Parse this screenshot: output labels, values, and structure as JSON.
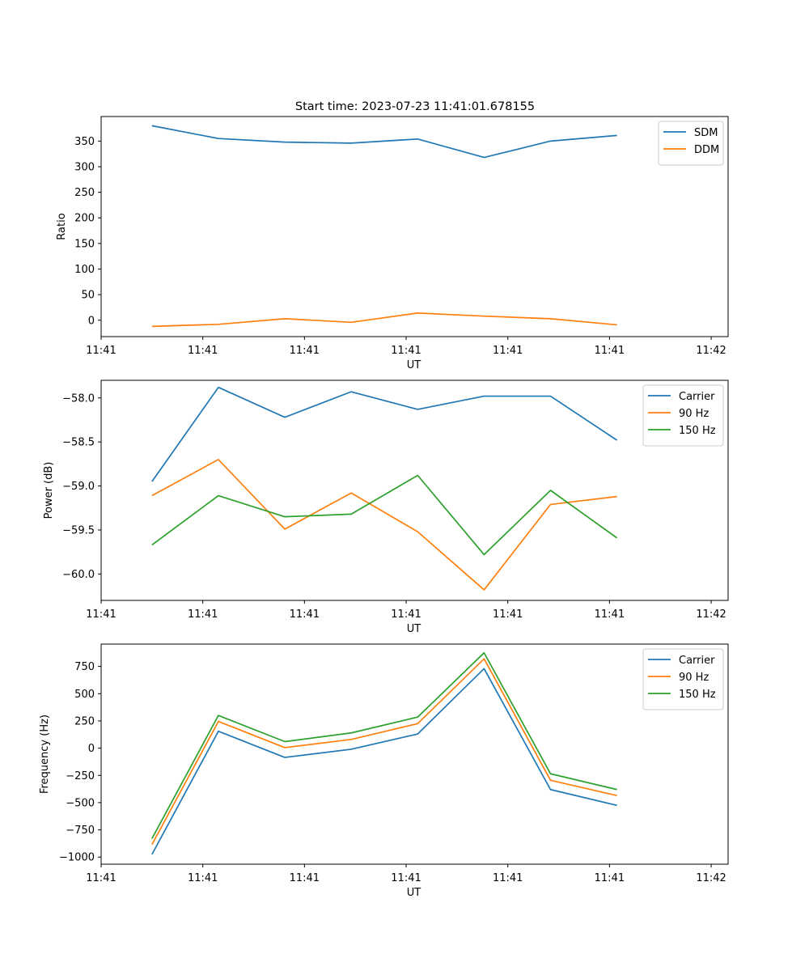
{
  "figure": {
    "title": "Start time: 2023-07-23 11:41:01.678155"
  },
  "chart_data": [
    {
      "type": "line",
      "ylabel": "Ratio",
      "xlabel": "UT",
      "xlim": [
        0,
        9.25
      ],
      "ylim": [
        -32,
        398
      ],
      "yticks": [
        0,
        50,
        100,
        150,
        200,
        250,
        300,
        350
      ],
      "ytick_labels": [
        "0",
        "50",
        "100",
        "150",
        "200",
        "250",
        "300",
        "350"
      ],
      "xticks": [
        0,
        1.5,
        3,
        4.5,
        6,
        7.5,
        9
      ],
      "xtick_labels": [
        "11:41",
        "11:41",
        "11:41",
        "11:41",
        "11:41",
        "11:41",
        "11:42"
      ],
      "x": [
        0.75,
        1.73,
        2.71,
        3.69,
        4.67,
        5.65,
        6.63,
        7.61
      ],
      "series": [
        {
          "name": "SDM",
          "color": "#1f77b4",
          "values": [
            380,
            355,
            348,
            346,
            354,
            318,
            350,
            361
          ]
        },
        {
          "name": "DDM",
          "color": "#ff7f0e",
          "values": [
            -12,
            -8,
            3,
            -4,
            14,
            8,
            3,
            -9
          ]
        }
      ],
      "legend": "top-right"
    },
    {
      "type": "line",
      "ylabel": "Power (dB)",
      "xlabel": "UT",
      "xlim": [
        0,
        9.25
      ],
      "ylim": [
        -60.3,
        -57.8
      ],
      "yticks": [
        -60.0,
        -59.5,
        -59.0,
        -58.5,
        -58.0
      ],
      "ytick_labels": [
        "−60.0",
        "−59.5",
        "−59.0",
        "−58.5",
        "−58.0"
      ],
      "xticks": [
        0,
        1.5,
        3,
        4.5,
        6,
        7.5,
        9
      ],
      "xtick_labels": [
        "11:41",
        "11:41",
        "11:41",
        "11:41",
        "11:41",
        "11:41",
        "11:42"
      ],
      "x": [
        0.75,
        1.73,
        2.71,
        3.69,
        4.67,
        5.65,
        6.63,
        7.61
      ],
      "series": [
        {
          "name": "Carrier",
          "color": "#1f77b4",
          "values": [
            -58.95,
            -57.88,
            -58.22,
            -57.93,
            -58.13,
            -57.98,
            -57.98,
            -58.48
          ]
        },
        {
          "name": "90 Hz",
          "color": "#ff7f0e",
          "values": [
            -59.11,
            -58.7,
            -59.49,
            -59.08,
            -59.52,
            -60.18,
            -59.21,
            -59.12
          ]
        },
        {
          "name": "150 Hz",
          "color": "#2ca02c",
          "values": [
            -59.67,
            -59.11,
            -59.35,
            -59.32,
            -58.88,
            -59.78,
            -59.05,
            -59.59
          ]
        }
      ],
      "legend": "top-right"
    },
    {
      "type": "line",
      "ylabel": "Frequency (Hz)",
      "xlabel": "UT",
      "xlim": [
        0,
        9.25
      ],
      "ylim": [
        -1065,
        955
      ],
      "yticks": [
        -1000,
        -750,
        -500,
        -250,
        0,
        250,
        500,
        750
      ],
      "ytick_labels": [
        "−1000",
        "−750",
        "−500",
        "−250",
        "0",
        "250",
        "500",
        "750"
      ],
      "xticks": [
        0,
        1.5,
        3,
        4.5,
        6,
        7.5,
        9
      ],
      "xtick_labels": [
        "11:41",
        "11:41",
        "11:41",
        "11:41",
        "11:41",
        "11:41",
        "11:42"
      ],
      "x": [
        0.75,
        1.73,
        2.71,
        3.69,
        4.67,
        5.65,
        6.63,
        7.61
      ],
      "series": [
        {
          "name": "Carrier",
          "color": "#1f77b4",
          "values": [
            -975,
            155,
            -85,
            -10,
            130,
            730,
            -380,
            -525
          ]
        },
        {
          "name": "90 Hz",
          "color": "#ff7f0e",
          "values": [
            -885,
            245,
            5,
            80,
            225,
            820,
            -295,
            -435
          ]
        },
        {
          "name": "150 Hz",
          "color": "#2ca02c",
          "values": [
            -830,
            300,
            60,
            140,
            285,
            875,
            -235,
            -380
          ]
        }
      ],
      "legend": "top-right"
    }
  ]
}
